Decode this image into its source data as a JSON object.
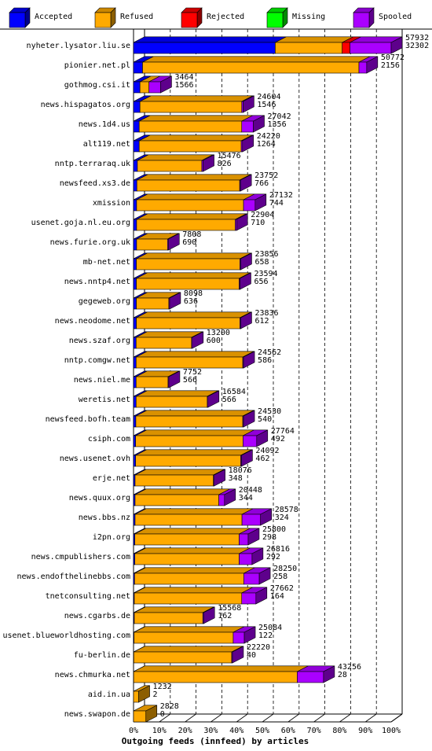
{
  "chart_data": {
    "type": "bar",
    "orientation": "horizontal",
    "stacked": true,
    "xlabel": "Outgoing feeds (innfeed) by articles",
    "xlim": [
      0,
      100
    ],
    "x_ticks": [
      "0%",
      "10%",
      "20%",
      "30%",
      "40%",
      "50%",
      "60%",
      "70%",
      "80%",
      "90%",
      "100%"
    ],
    "legend_position": "top",
    "series": [
      {
        "name": "Accepted",
        "color": "#0000ff"
      },
      {
        "name": "Refused",
        "color": "#ffaa00"
      },
      {
        "name": "Rejected",
        "color": "#ff0000"
      },
      {
        "name": "Missing",
        "color": "#00ff00"
      },
      {
        "name": "Spooled",
        "color": "#aa00ff"
      }
    ],
    "rows": [
      {
        "host": "nyheter.lysator.liu.se",
        "offered": "57932",
        "accepted": "32302",
        "pct": [
          55,
          26,
          3,
          0,
          16
        ]
      },
      {
        "host": "pionier.net.pl",
        "offered": "50772",
        "accepted": "2156",
        "pct": [
          3.5,
          84,
          0,
          0,
          3
        ]
      },
      {
        "host": "gothmog.csi.it",
        "offered": "3464",
        "accepted": "1566",
        "pct": [
          2.5,
          3.5,
          0,
          0,
          4.5
        ]
      },
      {
        "host": "news.hispagatos.org",
        "offered": "24604",
        "accepted": "1546",
        "pct": [
          2.5,
          39.5,
          0,
          0,
          0.5
        ]
      },
      {
        "host": "news.1d4.us",
        "offered": "27042",
        "accepted": "1356",
        "pct": [
          2.2,
          39.8,
          0,
          0,
          4.5
        ]
      },
      {
        "host": "alt119.net",
        "offered": "24220",
        "accepted": "1264",
        "pct": [
          2.2,
          39.6,
          0,
          0,
          0.5
        ]
      },
      {
        "host": "nntp.terraraq.uk",
        "offered": "15476",
        "accepted": "826",
        "pct": [
          1.5,
          25,
          0,
          0,
          0.5
        ]
      },
      {
        "host": "newsfeed.xs3.de",
        "offered": "23752",
        "accepted": "766",
        "pct": [
          1.3,
          39.9,
          0,
          0,
          0.3
        ]
      },
      {
        "host": "xmission",
        "offered": "27132",
        "accepted": "744",
        "pct": [
          1.2,
          41.5,
          0,
          0,
          4.5
        ]
      },
      {
        "host": "usenet.goja.nl.eu.org",
        "offered": "22904",
        "accepted": "710",
        "pct": [
          1.2,
          38.3,
          0,
          0,
          0.5
        ]
      },
      {
        "host": "news.furie.org.uk",
        "offered": "7808",
        "accepted": "690",
        "pct": [
          1.2,
          12,
          0,
          0,
          0.3
        ]
      },
      {
        "host": "mb-net.net",
        "offered": "23856",
        "accepted": "658",
        "pct": [
          1.1,
          40.2,
          0,
          0,
          0.3
        ]
      },
      {
        "host": "news.nntp4.net",
        "offered": "23594",
        "accepted": "656",
        "pct": [
          1.1,
          39.9,
          0,
          0,
          0.3
        ]
      },
      {
        "host": "gegeweb.org",
        "offered": "8098",
        "accepted": "636",
        "pct": [
          1.1,
          12.6,
          0,
          0,
          0.3
        ]
      },
      {
        "host": "news.neodome.net",
        "offered": "23836",
        "accepted": "612",
        "pct": [
          1.1,
          40.2,
          0,
          0,
          0.3
        ]
      },
      {
        "host": "news.szaf.org",
        "offered": "13200",
        "accepted": "600",
        "pct": [
          1,
          21.5,
          0,
          0,
          0.3
        ]
      },
      {
        "host": "nntp.comgw.net",
        "offered": "24562",
        "accepted": "586",
        "pct": [
          1,
          41.4,
          0,
          0,
          0.3
        ]
      },
      {
        "host": "news.niel.me",
        "offered": "7752",
        "accepted": "566",
        "pct": [
          1,
          12.4,
          0,
          0,
          0.3
        ]
      },
      {
        "host": "weretis.net",
        "offered": "16584",
        "accepted": "566",
        "pct": [
          1,
          27.6,
          0,
          0,
          0.3
        ]
      },
      {
        "host": "newsfeed.bofh.team",
        "offered": "24530",
        "accepted": "540",
        "pct": [
          0.9,
          41.5,
          0,
          0,
          0.3
        ]
      },
      {
        "host": "csiph.com",
        "offered": "27764",
        "accepted": "492",
        "pct": [
          0.8,
          41.7,
          0,
          0,
          5.3
        ]
      },
      {
        "host": "news.usenet.ovh",
        "offered": "24092",
        "accepted": "462",
        "pct": [
          0.8,
          40.8,
          0,
          0,
          0.3
        ]
      },
      {
        "host": "erje.net",
        "offered": "18076",
        "accepted": "348",
        "pct": [
          0.6,
          30.4,
          0,
          0,
          0.3
        ]
      },
      {
        "host": "news.quux.org",
        "offered": "20448",
        "accepted": "344",
        "pct": [
          0.6,
          32.5,
          0,
          0,
          2.2
        ]
      },
      {
        "host": "news.bbs.nz",
        "offered": "28578",
        "accepted": "324",
        "pct": [
          0.6,
          41.5,
          0,
          0,
          7.2
        ]
      },
      {
        "host": "i2pn.org",
        "offered": "25800",
        "accepted": "298",
        "pct": [
          0.5,
          40.5,
          0,
          0,
          3.5
        ]
      },
      {
        "host": "news.cmpublishers.com",
        "offered": "26816",
        "accepted": "292",
        "pct": [
          0.5,
          40.5,
          0,
          0,
          5
        ]
      },
      {
        "host": "news.endofthelinebbs.com",
        "offered": "28250",
        "accepted": "258",
        "pct": [
          0.4,
          42.4,
          0,
          0,
          6
        ]
      },
      {
        "host": "tnetconsulting.net",
        "offered": "27662",
        "accepted": "164",
        "pct": [
          0.3,
          41.7,
          0,
          0,
          5.5
        ]
      },
      {
        "host": "news.cgarbs.de",
        "offered": "15568",
        "accepted": "162",
        "pct": [
          0.3,
          26.6,
          0,
          0,
          0.3
        ]
      },
      {
        "host": "usenet.blueworldhosting.com",
        "offered": "25084",
        "accepted": "122",
        "pct": [
          0.2,
          38.5,
          0,
          0,
          4.3
        ]
      },
      {
        "host": "fu-berlin.de",
        "offered": "22220",
        "accepted": "40",
        "pct": [
          0.1,
          38,
          0,
          0,
          0.3
        ]
      },
      {
        "host": "news.chmurka.net",
        "offered": "43256",
        "accepted": "28",
        "pct": [
          0.05,
          63.5,
          0,
          0,
          10.2
        ]
      },
      {
        "host": "aid.in.ua",
        "offered": "1232",
        "accepted": "2",
        "pct": [
          0,
          2,
          0,
          0,
          0
        ]
      },
      {
        "host": "news.swapon.de",
        "offered": "2828",
        "accepted": "0",
        "pct": [
          0,
          4.8,
          0,
          0,
          0
        ]
      }
    ]
  }
}
